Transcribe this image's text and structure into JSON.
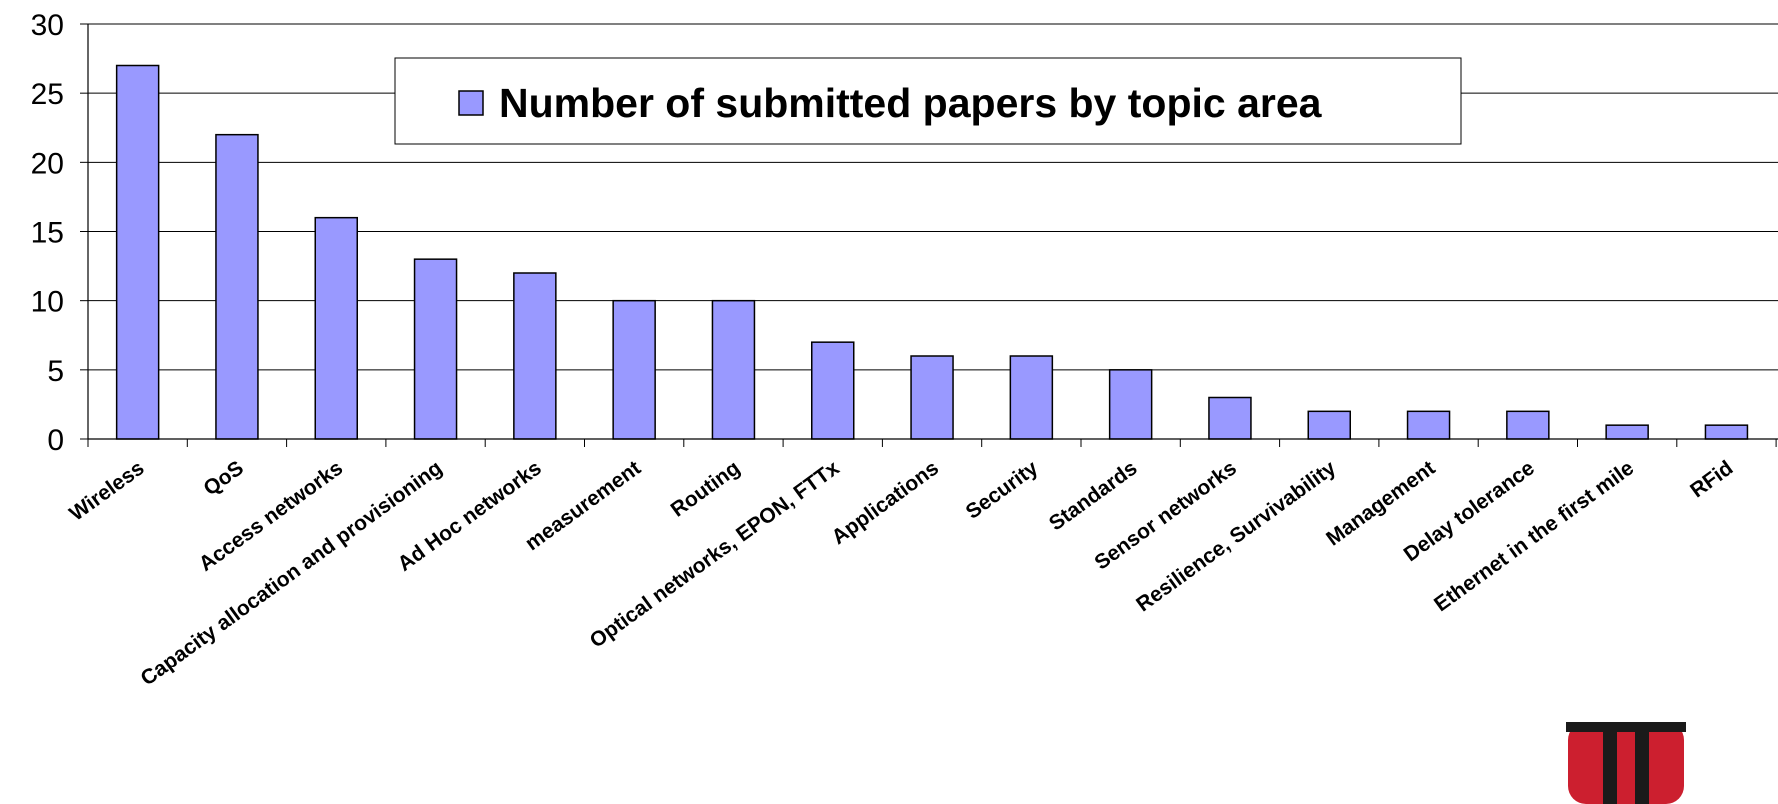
{
  "chart_data": {
    "type": "bar",
    "title": "",
    "xlabel": "",
    "ylabel": "",
    "ylim": [
      0,
      30
    ],
    "yticks": [
      0,
      5,
      10,
      15,
      20,
      25,
      30
    ],
    "grid": true,
    "legend_position": "top-center",
    "categories": [
      "Wireless",
      "QoS",
      "Access networks",
      "Capacity allocation and provisioning",
      "Ad Hoc networks",
      "measurement",
      "Routing",
      "Optical networks, EPON, FTTx",
      "Applications",
      "Security",
      "Standards",
      "Sensor networks",
      "Resilience, Survivability",
      "Management",
      "Delay tolerance",
      "Ethernet in the first mile",
      "RFid"
    ],
    "series": [
      {
        "name": "Number of submitted papers by topic area",
        "values": [
          27,
          22,
          16,
          13,
          12,
          10,
          10,
          7,
          6,
          6,
          5,
          3,
          2,
          2,
          2,
          1,
          1
        ]
      }
    ]
  },
  "colors": {
    "bar_fill": "#9999ff",
    "bar_stroke": "#000000",
    "grid": "#000000",
    "logo_red": "#cc1f2f",
    "logo_black": "#1a1a1a"
  },
  "logo": {
    "name": "university-logo"
  }
}
